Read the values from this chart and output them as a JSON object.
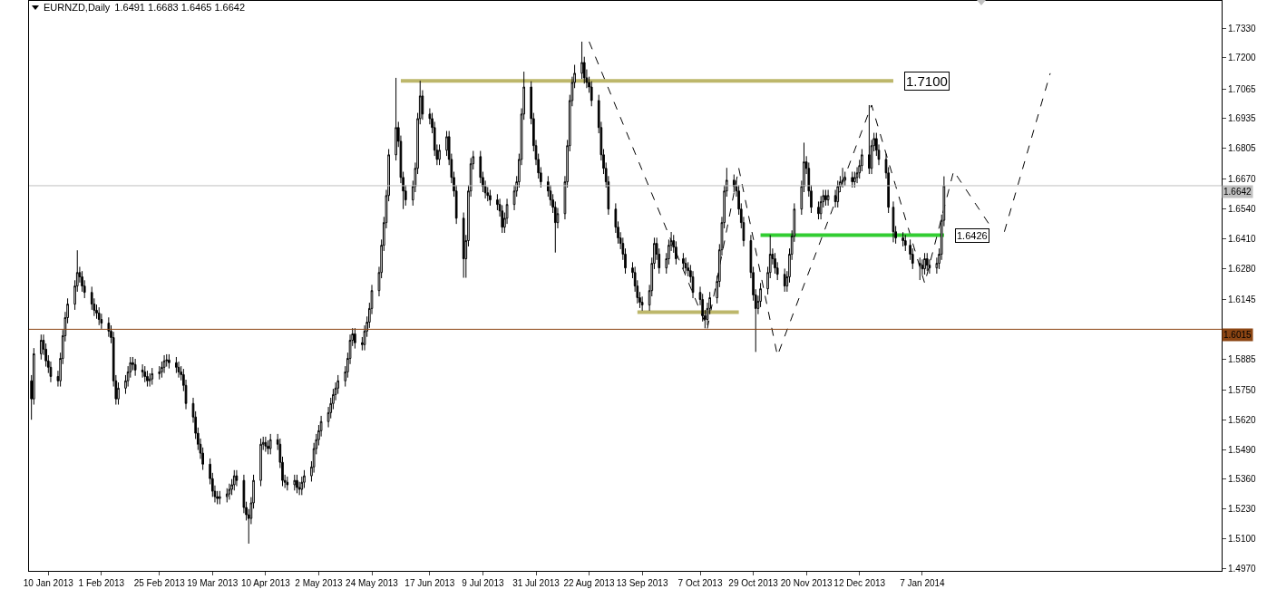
{
  "chart_data": {
    "type": "candlestick",
    "title": "EURNZD,Daily",
    "subtitle": "1.6491 1.6683 1.6465 1.6642",
    "x": [
      "2013-01-03",
      "2013-01-04",
      "2013-01-07",
      "2013-01-08",
      "2013-01-09",
      "2013-01-10",
      "2013-01-11",
      "2013-01-14",
      "2013-01-15",
      "2013-01-16",
      "2013-01-17",
      "2013-01-18",
      "2013-01-21",
      "2013-01-22",
      "2013-01-23",
      "2013-01-24",
      "2013-01-25",
      "2013-01-28",
      "2013-01-29",
      "2013-01-30",
      "2013-01-31",
      "2013-02-01",
      "2013-02-04",
      "2013-02-05",
      "2013-02-06",
      "2013-02-07",
      "2013-02-08",
      "2013-02-11",
      "2013-02-12",
      "2013-02-13",
      "2013-02-14",
      "2013-02-15",
      "2013-02-18",
      "2013-02-19",
      "2013-02-20",
      "2013-02-21",
      "2013-02-22",
      "2013-02-25",
      "2013-02-26",
      "2013-02-27",
      "2013-02-28",
      "2013-03-01",
      "2013-03-04",
      "2013-03-05",
      "2013-03-06",
      "2013-03-07",
      "2013-03-08",
      "2013-03-11",
      "2013-03-12",
      "2013-03-13",
      "2013-03-14",
      "2013-03-15",
      "2013-03-18",
      "2013-03-19",
      "2013-03-20",
      "2013-03-21",
      "2013-03-22",
      "2013-03-25",
      "2013-03-26",
      "2013-03-27",
      "2013-03-28",
      "2013-03-29",
      "2013-04-01",
      "2013-04-02",
      "2013-04-03",
      "2013-04-04",
      "2013-04-05",
      "2013-04-08",
      "2013-04-09",
      "2013-04-10",
      "2013-04-11",
      "2013-04-12",
      "2013-04-15",
      "2013-04-16",
      "2013-04-17",
      "2013-04-18",
      "2013-04-19",
      "2013-04-22",
      "2013-04-23",
      "2013-04-24",
      "2013-04-25",
      "2013-04-26",
      "2013-04-29",
      "2013-04-30",
      "2013-05-01",
      "2013-05-02",
      "2013-05-03",
      "2013-05-06",
      "2013-05-07",
      "2013-05-08",
      "2013-05-09",
      "2013-05-10",
      "2013-05-13",
      "2013-05-14",
      "2013-05-15",
      "2013-05-16",
      "2013-05-17",
      "2013-05-20",
      "2013-05-21",
      "2013-05-22",
      "2013-05-23",
      "2013-05-24",
      "2013-05-27",
      "2013-05-28",
      "2013-05-29",
      "2013-05-30",
      "2013-05-31",
      "2013-06-03",
      "2013-06-04",
      "2013-06-05",
      "2013-06-06",
      "2013-06-07",
      "2013-06-10",
      "2013-06-11",
      "2013-06-12",
      "2013-06-13",
      "2013-06-14",
      "2013-06-17",
      "2013-06-18",
      "2013-06-19",
      "2013-06-20",
      "2013-06-21",
      "2013-06-24",
      "2013-06-25",
      "2013-06-26",
      "2013-06-27",
      "2013-06-28",
      "2013-07-01",
      "2013-07-02",
      "2013-07-03",
      "2013-07-04",
      "2013-07-05",
      "2013-07-08",
      "2013-07-09",
      "2013-07-10",
      "2013-07-11",
      "2013-07-12",
      "2013-07-15",
      "2013-07-16",
      "2013-07-17",
      "2013-07-18",
      "2013-07-19",
      "2013-07-22",
      "2013-07-23",
      "2013-07-24",
      "2013-07-25",
      "2013-07-26",
      "2013-07-29",
      "2013-07-30",
      "2013-07-31",
      "2013-08-01",
      "2013-08-02",
      "2013-08-05",
      "2013-08-06",
      "2013-08-07",
      "2013-08-08",
      "2013-08-09",
      "2013-08-12",
      "2013-08-13",
      "2013-08-14",
      "2013-08-15",
      "2013-08-16",
      "2013-08-19",
      "2013-08-20",
      "2013-08-21",
      "2013-08-22",
      "2013-08-23",
      "2013-08-26",
      "2013-08-27",
      "2013-08-28",
      "2013-08-29",
      "2013-08-30",
      "2013-09-02",
      "2013-09-03",
      "2013-09-04",
      "2013-09-05",
      "2013-09-06",
      "2013-09-09",
      "2013-09-10",
      "2013-09-11",
      "2013-09-12",
      "2013-09-13",
      "2013-09-16",
      "2013-09-17",
      "2013-09-18",
      "2013-09-19",
      "2013-09-20",
      "2013-09-23",
      "2013-09-24",
      "2013-09-25",
      "2013-09-26",
      "2013-09-27",
      "2013-09-30",
      "2013-10-01",
      "2013-10-02",
      "2013-10-03",
      "2013-10-04",
      "2013-10-07",
      "2013-10-08",
      "2013-10-09",
      "2013-10-10",
      "2013-10-11",
      "2013-10-14",
      "2013-10-15",
      "2013-10-16",
      "2013-10-17",
      "2013-10-18",
      "2013-10-21",
      "2013-10-22",
      "2013-10-23",
      "2013-10-24",
      "2013-10-25",
      "2013-10-28",
      "2013-10-29",
      "2013-10-30",
      "2013-10-31",
      "2013-11-01",
      "2013-11-04",
      "2013-11-05",
      "2013-11-06",
      "2013-11-07",
      "2013-11-08",
      "2013-11-11",
      "2013-11-12",
      "2013-11-13",
      "2013-11-14",
      "2013-11-15",
      "2013-11-18",
      "2013-11-19",
      "2013-11-20",
      "2013-11-21",
      "2013-11-22",
      "2013-11-25",
      "2013-11-26",
      "2013-11-27",
      "2013-11-28",
      "2013-11-29",
      "2013-12-02",
      "2013-12-03",
      "2013-12-04",
      "2013-12-05",
      "2013-12-06",
      "2013-12-09",
      "2013-12-10",
      "2013-12-11",
      "2013-12-12",
      "2013-12-13",
      "2013-12-16",
      "2013-12-17",
      "2013-12-18",
      "2013-12-19",
      "2013-12-20",
      "2013-12-23",
      "2013-12-24",
      "2013-12-26",
      "2013-12-27",
      "2013-12-30",
      "2013-12-31",
      "2014-01-02",
      "2014-01-03",
      "2014-01-06",
      "2014-01-07",
      "2014-01-08",
      "2014-01-09",
      "2014-01-10",
      "2014-01-13",
      "2014-01-14",
      "2014-01-15",
      "2014-01-16"
    ],
    "ohlc": [
      [
        1.579,
        1.5815,
        1.562,
        1.5711
      ],
      [
        1.5711,
        1.5933,
        1.5686,
        1.5908
      ],
      [
        1.5908,
        1.5992,
        1.5883,
        1.5967
      ],
      [
        1.5967,
        1.5992,
        1.5903,
        1.5928
      ],
      [
        1.5928,
        1.5953,
        1.5852,
        1.5877
      ],
      [
        1.5877,
        1.5902,
        1.5824,
        1.5849
      ],
      [
        1.5849,
        1.5874,
        1.5784,
        1.5809
      ],
      [
        1.5809,
        1.5834,
        1.5765,
        1.579
      ],
      [
        1.579,
        1.5913,
        1.5765,
        1.5888
      ],
      [
        1.5888,
        1.6012,
        1.5863,
        1.5987
      ],
      [
        1.5987,
        1.6091,
        1.5962,
        1.6066
      ],
      [
        1.6066,
        1.615,
        1.6041,
        1.6125
      ],
      [
        1.6125,
        1.6229,
        1.61,
        1.6204
      ],
      [
        1.6204,
        1.636,
        1.6179,
        1.6263
      ],
      [
        1.6263,
        1.6288,
        1.6219,
        1.6244
      ],
      [
        1.6244,
        1.6269,
        1.6179,
        1.6204
      ],
      [
        1.6204,
        1.6229,
        1.6151,
        1.6176
      ],
      [
        1.6176,
        1.6201,
        1.61,
        1.6125
      ],
      [
        1.6125,
        1.615,
        1.6073,
        1.6098
      ],
      [
        1.6098,
        1.6123,
        1.6061,
        1.6086
      ],
      [
        1.6086,
        1.6111,
        1.6033,
        1.6058
      ],
      [
        1.6058,
        1.6083,
        1.6017,
        1.6042
      ],
      [
        1.6042,
        1.6067,
        1.5982,
        1.6007
      ],
      [
        1.6007,
        1.6032,
        1.5954,
        1.5979
      ],
      [
        1.5979,
        1.6004,
        1.5765,
        1.579
      ],
      [
        1.579,
        1.5815,
        1.5686,
        1.5711
      ],
      [
        1.5711,
        1.5783,
        1.5686,
        1.5758
      ],
      [
        1.5758,
        1.5815,
        1.5733,
        1.579
      ],
      [
        1.579,
        1.5854,
        1.5765,
        1.5829
      ],
      [
        1.5829,
        1.5894,
        1.5804,
        1.5869
      ],
      [
        1.5869,
        1.5894,
        1.5836,
        1.5861
      ],
      [
        1.5861,
        1.5886,
        1.5812,
        1.5837
      ],
      [
        1.5837,
        1.5862,
        1.5804,
        1.5829
      ],
      [
        1.5829,
        1.5854,
        1.5784,
        1.5809
      ],
      [
        1.5809,
        1.5834,
        1.5765,
        1.579
      ],
      [
        1.579,
        1.5823,
        1.5765,
        1.5798
      ],
      [
        1.5798,
        1.5846,
        1.5773,
        1.5821
      ],
      [
        1.5821,
        1.5854,
        1.5796,
        1.5829
      ],
      [
        1.5829,
        1.5874,
        1.5804,
        1.5849
      ],
      [
        1.5849,
        1.5902,
        1.5824,
        1.5877
      ],
      [
        1.5877,
        1.5906,
        1.5852,
        1.5881
      ],
      [
        1.5881,
        1.5906,
        1.5844,
        1.5869
      ],
      [
        1.5869,
        1.5894,
        1.5824,
        1.5849
      ],
      [
        1.5849,
        1.5874,
        1.5804,
        1.5829
      ],
      [
        1.5829,
        1.5854,
        1.5792,
        1.5817
      ],
      [
        1.5817,
        1.5842,
        1.5745,
        1.577
      ],
      [
        1.577,
        1.5795,
        1.5666,
        1.5691
      ],
      [
        1.5691,
        1.5716,
        1.5607,
        1.5632
      ],
      [
        1.5632,
        1.5657,
        1.5536,
        1.5561
      ],
      [
        1.5561,
        1.5586,
        1.5488,
        1.5513
      ],
      [
        1.5513,
        1.5538,
        1.5449,
        1.5474
      ],
      [
        1.5474,
        1.5499,
        1.5401,
        1.5426
      ],
      [
        1.5426,
        1.5451,
        1.5338,
        1.5363
      ],
      [
        1.5363,
        1.5388,
        1.5283,
        1.5308
      ],
      [
        1.5308,
        1.5333,
        1.5259,
        1.5284
      ],
      [
        1.5284,
        1.5309,
        1.5251,
        1.5276
      ],
      [
        1.5276,
        1.5309,
        1.5251,
        1.5284
      ],
      [
        1.5284,
        1.5321,
        1.5259,
        1.5296
      ],
      [
        1.5296,
        1.5341,
        1.5271,
        1.5316
      ],
      [
        1.5316,
        1.5361,
        1.5291,
        1.5336
      ],
      [
        1.5336,
        1.54,
        1.5311,
        1.5375
      ],
      [
        1.5375,
        1.54,
        1.533,
        1.5355
      ],
      [
        1.5355,
        1.538,
        1.5212,
        1.5237
      ],
      [
        1.5237,
        1.5262,
        1.518,
        1.5205
      ],
      [
        1.5205,
        1.523,
        1.5079,
        1.5189
      ],
      [
        1.5189,
        1.5282,
        1.5164,
        1.5257
      ],
      [
        1.5257,
        1.538,
        1.5232,
        1.5355
      ],
      [
        1.5355,
        1.5538,
        1.533,
        1.5513
      ],
      [
        1.5513,
        1.5546,
        1.5488,
        1.5521
      ],
      [
        1.5521,
        1.5546,
        1.548,
        1.5505
      ],
      [
        1.5505,
        1.553,
        1.5469,
        1.5494
      ],
      [
        1.5494,
        1.5558,
        1.5469,
        1.5533
      ],
      [
        1.5533,
        1.5558,
        1.5488,
        1.5513
      ],
      [
        1.5513,
        1.5538,
        1.5409,
        1.5434
      ],
      [
        1.5434,
        1.5459,
        1.533,
        1.5355
      ],
      [
        1.5355,
        1.538,
        1.5322,
        1.5347
      ],
      [
        1.5347,
        1.5372,
        1.5311,
        1.5336
      ],
      [
        1.5336,
        1.538,
        1.5311,
        1.5355
      ],
      [
        1.5355,
        1.538,
        1.5299,
        1.5324
      ],
      [
        1.5324,
        1.5349,
        1.5291,
        1.5316
      ],
      [
        1.5316,
        1.5372,
        1.5291,
        1.5347
      ],
      [
        1.5347,
        1.54,
        1.5322,
        1.5375
      ],
      [
        1.5375,
        1.5439,
        1.535,
        1.5414
      ],
      [
        1.5414,
        1.5519,
        1.5389,
        1.5494
      ],
      [
        1.5494,
        1.5558,
        1.5469,
        1.5533
      ],
      [
        1.5533,
        1.5597,
        1.5508,
        1.5572
      ],
      [
        1.5572,
        1.5637,
        1.5547,
        1.5612
      ],
      [
        1.5612,
        1.5676,
        1.5587,
        1.5651
      ],
      [
        1.5651,
        1.5716,
        1.5626,
        1.5691
      ],
      [
        1.5691,
        1.5755,
        1.5666,
        1.573
      ],
      [
        1.573,
        1.5783,
        1.5705,
        1.5758
      ],
      [
        1.5758,
        1.5815,
        1.5733,
        1.579
      ],
      [
        1.579,
        1.5854,
        1.5765,
        1.5829
      ],
      [
        1.5829,
        1.5913,
        1.5804,
        1.5888
      ],
      [
        1.5888,
        1.5992,
        1.5863,
        1.5967
      ],
      [
        1.5967,
        1.602,
        1.5942,
        1.5995
      ],
      [
        1.5995,
        1.602,
        1.5931,
        1.5956
      ],
      [
        1.5956,
        1.5981,
        1.5923,
        1.5948
      ],
      [
        1.5948,
        1.6032,
        1.5923,
        1.6007
      ],
      [
        1.6007,
        1.6071,
        1.5982,
        1.6046
      ],
      [
        1.6046,
        1.6131,
        1.6021,
        1.6106
      ],
      [
        1.6106,
        1.6209,
        1.6081,
        1.6184
      ],
      [
        1.6184,
        1.6288,
        1.6159,
        1.6263
      ],
      [
        1.6263,
        1.6407,
        1.6238,
        1.6382
      ],
      [
        1.6382,
        1.6506,
        1.6357,
        1.6481
      ],
      [
        1.6481,
        1.6624,
        1.6456,
        1.6599
      ],
      [
        1.6599,
        1.6802,
        1.6574,
        1.6777
      ],
      [
        1.6777,
        1.7113,
        1.6752,
        1.6896
      ],
      [
        1.6896,
        1.6921,
        1.6811,
        1.6836
      ],
      [
        1.6836,
        1.6861,
        1.6653,
        1.6678
      ],
      [
        1.6678,
        1.6703,
        1.654,
        1.6619
      ],
      [
        1.6619,
        1.6644,
        1.6555,
        1.658
      ],
      [
        1.658,
        1.6664,
        1.6555,
        1.6639
      ],
      [
        1.6639,
        1.6743,
        1.6614,
        1.6718
      ],
      [
        1.6718,
        1.696,
        1.6693,
        1.6935
      ],
      [
        1.6935,
        1.71,
        1.691,
        1.7034
      ],
      [
        1.7034,
        1.7059,
        1.693,
        1.6955
      ],
      [
        1.6955,
        1.698,
        1.691,
        1.6935
      ],
      [
        1.6935,
        1.696,
        1.6871,
        1.6896
      ],
      [
        1.6896,
        1.6921,
        1.6772,
        1.6797
      ],
      [
        1.6797,
        1.6822,
        1.6732,
        1.6757
      ],
      [
        1.6757,
        1.6822,
        1.6732,
        1.6797
      ],
      [
        1.6797,
        1.6881,
        1.6772,
        1.6856
      ],
      [
        1.6856,
        1.6881,
        1.6732,
        1.6757
      ],
      [
        1.6757,
        1.6782,
        1.6653,
        1.6678
      ],
      [
        1.6678,
        1.6703,
        1.6594,
        1.6619
      ],
      [
        1.6619,
        1.6644,
        1.6475,
        1.65
      ],
      [
        1.65,
        1.6525,
        1.624,
        1.6323
      ],
      [
        1.6323,
        1.6427,
        1.624,
        1.6402
      ],
      [
        1.6402,
        1.6644,
        1.6377,
        1.6619
      ],
      [
        1.6619,
        1.6763,
        1.6594,
        1.6738
      ],
      [
        1.6738,
        1.6794,
        1.6713,
        1.6769
      ],
      [
        1.6769,
        1.6794,
        1.6653,
        1.6678
      ],
      [
        1.6678,
        1.6703,
        1.6614,
        1.6639
      ],
      [
        1.6639,
        1.6664,
        1.6586,
        1.6611
      ],
      [
        1.6611,
        1.6636,
        1.6574,
        1.6599
      ],
      [
        1.6599,
        1.6624,
        1.6555,
        1.658
      ],
      [
        1.658,
        1.6605,
        1.6535,
        1.656
      ],
      [
        1.656,
        1.6585,
        1.6507,
        1.6532
      ],
      [
        1.6532,
        1.6557,
        1.6436,
        1.6461
      ],
      [
        1.6461,
        1.6525,
        1.6436,
        1.65
      ],
      [
        1.65,
        1.6585,
        1.6475,
        1.656
      ],
      [
        1.656,
        1.6644,
        1.6535,
        1.6619
      ],
      [
        1.6619,
        1.6684,
        1.6594,
        1.6659
      ],
      [
        1.6659,
        1.6782,
        1.6634,
        1.6757
      ],
      [
        1.6757,
        1.698,
        1.6732,
        1.6955
      ],
      [
        1.6955,
        1.714,
        1.693,
        1.7073
      ],
      [
        1.7073,
        1.7098,
        1.691,
        1.6935
      ],
      [
        1.6935,
        1.696,
        1.6792,
        1.6817
      ],
      [
        1.6817,
        1.6842,
        1.6732,
        1.6757
      ],
      [
        1.6757,
        1.6782,
        1.6673,
        1.6698
      ],
      [
        1.6698,
        1.6723,
        1.6634,
        1.6659
      ],
      [
        1.6659,
        1.6684,
        1.6594,
        1.6619
      ],
      [
        1.6619,
        1.6644,
        1.6555,
        1.658
      ],
      [
        1.658,
        1.6605,
        1.6523,
        1.6548
      ],
      [
        1.6548,
        1.6573,
        1.635,
        1.6481
      ],
      [
        1.6481,
        1.6545,
        1.6456,
        1.652
      ],
      [
        1.652,
        1.6684,
        1.6495,
        1.6659
      ],
      [
        1.6659,
        1.6842,
        1.6634,
        1.6817
      ],
      [
        1.6817,
        1.7039,
        1.6792,
        1.7014
      ],
      [
        1.7014,
        1.7118,
        1.6989,
        1.7093
      ],
      [
        1.7093,
        1.717,
        1.7068,
        1.7133
      ],
      [
        1.7133,
        1.7271,
        1.7108,
        1.718
      ],
      [
        1.718,
        1.7205,
        1.7088,
        1.7113
      ],
      [
        1.7113,
        1.715,
        1.7068,
        1.7093
      ],
      [
        1.7093,
        1.7118,
        1.7048,
        1.7073
      ],
      [
        1.7073,
        1.7098,
        1.6989,
        1.7014
      ],
      [
        1.7014,
        1.7039,
        1.6871,
        1.6896
      ],
      [
        1.6896,
        1.6921,
        1.6752,
        1.6777
      ],
      [
        1.6777,
        1.6802,
        1.6693,
        1.6718
      ],
      [
        1.6718,
        1.6743,
        1.6634,
        1.6659
      ],
      [
        1.6659,
        1.6684,
        1.6515,
        1.654
      ],
      [
        1.654,
        1.6565,
        1.6436,
        1.6461
      ],
      [
        1.6461,
        1.6486,
        1.6389,
        1.6414
      ],
      [
        1.6414,
        1.6439,
        1.6365,
        1.639
      ],
      [
        1.639,
        1.6415,
        1.6318,
        1.6343
      ],
      [
        1.6343,
        1.6368,
        1.6258,
        1.6283
      ],
      [
        1.6283,
        1.6308,
        1.6238,
        1.6263
      ],
      [
        1.6263,
        1.6288,
        1.6179,
        1.6204
      ],
      [
        1.6204,
        1.6229,
        1.6128,
        1.6153
      ],
      [
        1.6153,
        1.6178,
        1.6108,
        1.6133
      ],
      [
        1.6133,
        1.6158,
        1.6096,
        1.6121
      ],
      [
        1.6121,
        1.6209,
        1.6096,
        1.6184
      ],
      [
        1.6184,
        1.6328,
        1.6159,
        1.6303
      ],
      [
        1.6303,
        1.6415,
        1.6278,
        1.639
      ],
      [
        1.639,
        1.6415,
        1.6318,
        1.6343
      ],
      [
        1.6343,
        1.6368,
        1.6258,
        1.6283
      ],
      [
        1.6283,
        1.6348,
        1.6258,
        1.6323
      ],
      [
        1.6323,
        1.6407,
        1.6298,
        1.6382
      ],
      [
        1.6382,
        1.644,
        1.6357,
        1.6402
      ],
      [
        1.6402,
        1.6427,
        1.6349,
        1.6374
      ],
      [
        1.6374,
        1.6399,
        1.6298,
        1.6323
      ],
      [
        1.6323,
        1.6348,
        1.6278,
        1.6303
      ],
      [
        1.6303,
        1.6328,
        1.6258,
        1.6283
      ],
      [
        1.6283,
        1.6308,
        1.6246,
        1.6271
      ],
      [
        1.6271,
        1.6296,
        1.6219,
        1.6244
      ],
      [
        1.6244,
        1.6269,
        1.6151,
        1.6176
      ],
      [
        1.6176,
        1.6201,
        1.612,
        1.6145
      ],
      [
        1.6145,
        1.617,
        1.6049,
        1.6074
      ],
      [
        1.6074,
        1.6099,
        1.6019,
        1.6058
      ],
      [
        1.6058,
        1.6131,
        1.6033,
        1.6106
      ],
      [
        1.6106,
        1.6178,
        1.6081,
        1.6153
      ],
      [
        1.6153,
        1.6249,
        1.6128,
        1.6224
      ],
      [
        1.6224,
        1.6387,
        1.6199,
        1.6362
      ],
      [
        1.6362,
        1.6506,
        1.6337,
        1.6481
      ],
      [
        1.6481,
        1.6644,
        1.6456,
        1.6619
      ],
      [
        1.6619,
        1.672,
        1.6594,
        1.6666
      ],
      [
        1.6666,
        1.6691,
        1.6614,
        1.6639
      ],
      [
        1.6639,
        1.6664,
        1.6594,
        1.6619
      ],
      [
        1.6619,
        1.6644,
        1.6515,
        1.654
      ],
      [
        1.654,
        1.6565,
        1.6456,
        1.6481
      ],
      [
        1.6481,
        1.6506,
        1.6377,
        1.6402
      ],
      [
        1.6402,
        1.6427,
        1.6238,
        1.6263
      ],
      [
        1.6263,
        1.6288,
        1.614,
        1.6165
      ],
      [
        1.6165,
        1.619,
        1.5916,
        1.6106
      ],
      [
        1.6106,
        1.6162,
        1.6081,
        1.6137
      ],
      [
        1.6137,
        1.6217,
        1.6112,
        1.6192
      ],
      [
        1.6192,
        1.6288,
        1.6167,
        1.6263
      ],
      [
        1.6263,
        1.6426,
        1.6238,
        1.6343
      ],
      [
        1.6343,
        1.6368,
        1.6298,
        1.6323
      ],
      [
        1.6323,
        1.6348,
        1.6258,
        1.6283
      ],
      [
        1.6283,
        1.6308,
        1.623,
        1.6255
      ],
      [
        1.6255,
        1.628,
        1.6179,
        1.6204
      ],
      [
        1.6204,
        1.6269,
        1.6179,
        1.6244
      ],
      [
        1.6244,
        1.6368,
        1.6219,
        1.6343
      ],
      [
        1.6343,
        1.6447,
        1.6318,
        1.6422
      ],
      [
        1.6422,
        1.6565,
        1.6397,
        1.654
      ],
      [
        1.654,
        1.6664,
        1.6515,
        1.6639
      ],
      [
        1.6639,
        1.683,
        1.6614,
        1.6746
      ],
      [
        1.6746,
        1.6771,
        1.6693,
        1.6718
      ],
      [
        1.6718,
        1.6743,
        1.6594,
        1.6619
      ],
      [
        1.6619,
        1.6644,
        1.6523,
        1.6548
      ],
      [
        1.6548,
        1.6573,
        1.6495,
        1.652
      ],
      [
        1.652,
        1.6597,
        1.6495,
        1.6572
      ],
      [
        1.6572,
        1.6624,
        1.6547,
        1.6599
      ],
      [
        1.6599,
        1.6624,
        1.6555,
        1.658
      ],
      [
        1.658,
        1.6624,
        1.6555,
        1.6599
      ],
      [
        1.6599,
        1.6624,
        1.6547,
        1.6572
      ],
      [
        1.6572,
        1.6664,
        1.6547,
        1.6639
      ],
      [
        1.6639,
        1.6684,
        1.6614,
        1.6659
      ],
      [
        1.6659,
        1.672,
        1.6634,
        1.6666
      ],
      [
        1.6666,
        1.6703,
        1.6641,
        1.6678
      ],
      [
        1.6678,
        1.6703,
        1.6634,
        1.6659
      ],
      [
        1.6659,
        1.6703,
        1.6634,
        1.6678
      ],
      [
        1.6678,
        1.6723,
        1.6653,
        1.6698
      ],
      [
        1.6698,
        1.6755,
        1.6673,
        1.673
      ],
      [
        1.673,
        1.6802,
        1.6705,
        1.6777
      ],
      [
        1.6777,
        1.6994,
        1.6693,
        1.6718
      ],
      [
        1.6718,
        1.6842,
        1.6693,
        1.6817
      ],
      [
        1.6817,
        1.6873,
        1.6792,
        1.6848
      ],
      [
        1.6848,
        1.6873,
        1.6772,
        1.6797
      ],
      [
        1.6797,
        1.6822,
        1.6732,
        1.6757
      ],
      [
        1.6757,
        1.6782,
        1.6673,
        1.6698
      ],
      [
        1.6698,
        1.6723,
        1.6523,
        1.6548
      ],
      [
        1.6548,
        1.6573,
        1.6395,
        1.6441
      ],
      [
        1.6441,
        1.6466,
        1.6389,
        1.6414
      ],
      [
        1.6414,
        1.6439,
        1.6377,
        1.6402
      ],
      [
        1.6402,
        1.6427,
        1.6357,
        1.6382
      ],
      [
        1.6382,
        1.6407,
        1.6318,
        1.6343
      ],
      [
        1.6343,
        1.6368,
        1.6278,
        1.6303
      ],
      [
        1.6303,
        1.6328,
        1.623,
        1.6295
      ],
      [
        1.6295,
        1.632,
        1.6254,
        1.6279
      ],
      [
        1.6279,
        1.6348,
        1.6254,
        1.6323
      ],
      [
        1.6323,
        1.6348,
        1.627,
        1.6295
      ],
      [
        1.6295,
        1.632,
        1.6258,
        1.6283
      ],
      [
        1.6283,
        1.6328,
        1.6258,
        1.6303
      ],
      [
        1.6303,
        1.6368,
        1.6278,
        1.6343
      ],
      [
        1.6343,
        1.6516,
        1.6318,
        1.6491
      ],
      [
        1.6491,
        1.6683,
        1.6465,
        1.6642
      ]
    ],
    "series": [
      {
        "type": "line",
        "color": "#000000",
        "line_style": "dashed",
        "x": [
          "2013-08-22",
          "2013-10-10",
          "2013-10-23",
          "2013-11-08",
          "2013-12-17",
          "2014-01-08",
          "2014-01-20",
          "2014-02-05"
        ],
        "values": [
          1.7271,
          1.6019,
          1.6718,
          1.59,
          1.6994,
          1.6216,
          1.6706,
          1.6453
        ]
      },
      {
        "type": "line",
        "color": "#000000",
        "line_style": "dashed",
        "x": [
          "2014-02-10",
          "2014-03-01"
        ],
        "values": [
          1.6441,
          1.7133
        ]
      },
      {
        "type": "line",
        "color": "#bdb76b",
        "line_style": "solid",
        "x": [
          "2013-06-05",
          "2013-12-26"
        ],
        "values": [
          1.71,
          1.71
        ]
      },
      {
        "type": "line",
        "color": "#bdb76b",
        "line_style": "solid",
        "x": [
          "2013-09-11",
          "2013-10-23"
        ],
        "values": [
          1.609,
          1.609
        ]
      },
      {
        "type": "line",
        "color": "#32cd32",
        "line_style": "solid",
        "x": [
          "2013-11-01",
          "2014-01-16"
        ],
        "values": [
          1.6426,
          1.6426
        ]
      }
    ],
    "annotations": [
      {
        "text": "1.7100",
        "x": "2013-12-26",
        "y": 1.71
      },
      {
        "text": "1.6426",
        "x": "2014-01-16",
        "y": 1.6426
      }
    ],
    "ref_lines": [
      {
        "axis": "y",
        "value": 1.6642,
        "label": "1.6642",
        "color": "#c0c0c0"
      },
      {
        "axis": "y",
        "value": 1.6015,
        "label": "1.6015",
        "color": "#8b4513"
      }
    ],
    "xlim": [
      "2013-01-02",
      "2014-05-11"
    ],
    "xticks": [
      {
        "value": "2013-01-10",
        "label": "10 Jan 2013"
      },
      {
        "value": "2013-02-01",
        "label": "1 Feb 2013"
      },
      {
        "value": "2013-02-25",
        "label": "25 Feb 2013"
      },
      {
        "value": "2013-03-19",
        "label": "19 Mar 2013"
      },
      {
        "value": "2013-04-10",
        "label": "10 Apr 2013"
      },
      {
        "value": "2013-05-02",
        "label": "2 May 2013"
      },
      {
        "value": "2013-05-24",
        "label": "24 May 2013"
      },
      {
        "value": "2013-06-17",
        "label": "17 Jun 2013"
      },
      {
        "value": "2013-07-09",
        "label": "9 Jul 2013"
      },
      {
        "value": "2013-07-31",
        "label": "31 Jul 2013"
      },
      {
        "value": "2013-08-22",
        "label": "22 Aug 2013"
      },
      {
        "value": "2013-09-13",
        "label": "13 Sep 2013"
      },
      {
        "value": "2013-10-07",
        "label": "7 Oct 2013"
      },
      {
        "value": "2013-10-29",
        "label": "29 Oct 2013"
      },
      {
        "value": "2013-11-20",
        "label": "20 Nov 2013"
      },
      {
        "value": "2013-12-12",
        "label": "12 Dec 2013"
      },
      {
        "value": "2014-01-07",
        "label": "7 Jan 2014"
      }
    ],
    "ylim": [
      1.496,
      1.7449
    ],
    "yticks": [
      {
        "value": 1.497,
        "label": "1.4970"
      },
      {
        "value": 1.51,
        "label": "1.5100"
      },
      {
        "value": 1.523,
        "label": "1.5230"
      },
      {
        "value": 1.536,
        "label": "1.5360"
      },
      {
        "value": 1.549,
        "label": "1.5490"
      },
      {
        "value": 1.562,
        "label": "1.5620"
      },
      {
        "value": 1.575,
        "label": "1.5750"
      },
      {
        "value": 1.5885,
        "label": "1.5885"
      },
      {
        "value": 1.6145,
        "label": "1.6145"
      },
      {
        "value": 1.628,
        "label": "1.6280"
      },
      {
        "value": 1.641,
        "label": "1.6410"
      },
      {
        "value": 1.654,
        "label": "1.6540"
      },
      {
        "value": 1.667,
        "label": "1.6670"
      },
      {
        "value": 1.6805,
        "label": "1.6805"
      },
      {
        "value": 1.6935,
        "label": "1.6935"
      },
      {
        "value": 1.7065,
        "label": "1.7065"
      },
      {
        "value": 1.72,
        "label": "1.7200"
      },
      {
        "value": 1.733,
        "label": "1.7330"
      }
    ]
  }
}
